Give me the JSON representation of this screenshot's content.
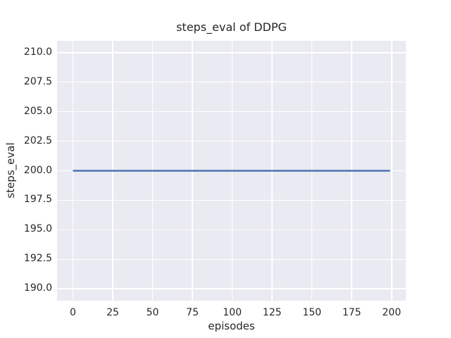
{
  "chart_data": {
    "type": "line",
    "title": "steps_eval of DDPG",
    "xlabel": "episodes",
    "ylabel": "steps_eval",
    "x_ticks": [
      0,
      25,
      50,
      75,
      100,
      125,
      150,
      175,
      200
    ],
    "x_tick_labels": [
      "0",
      "25",
      "50",
      "75",
      "100",
      "125",
      "150",
      "175",
      "200"
    ],
    "y_ticks": [
      190.0,
      192.5,
      195.0,
      197.5,
      200.0,
      202.5,
      205.0,
      207.5,
      210.0
    ],
    "y_tick_labels": [
      "190.0",
      "192.5",
      "195.0",
      "197.5",
      "200.0",
      "202.5",
      "205.0",
      "207.5",
      "210.0"
    ],
    "xlim": [
      -9.95,
      208.95
    ],
    "ylim": [
      189.0,
      211.0
    ],
    "grid": true,
    "legend": false,
    "series": [
      {
        "name": "steps_eval",
        "color": "#4c72b0",
        "points": [
          [
            0,
            200
          ],
          [
            199,
            200
          ]
        ]
      }
    ],
    "styles": {
      "figure_bg": "#ffffff",
      "plot_bg": "#eaeaf2",
      "grid_color": "#ffffff",
      "text_color": "#262626",
      "line_width": 2.5
    }
  }
}
